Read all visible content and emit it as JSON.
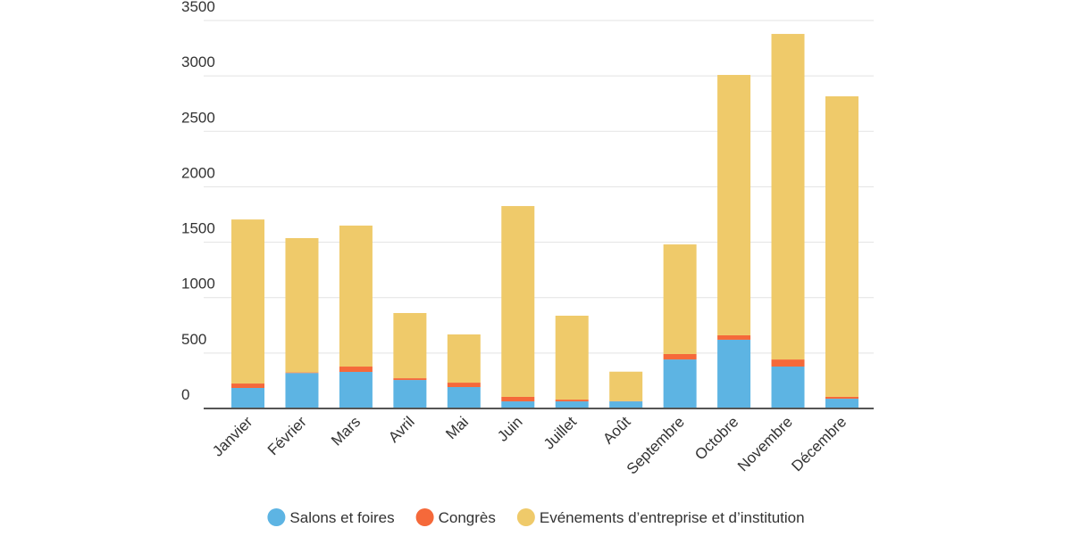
{
  "chart_data": {
    "type": "bar",
    "stacked": true,
    "categories": [
      "Janvier",
      "Février",
      "Mars",
      "Avril",
      "Mai",
      "Juin",
      "Juillet",
      "Août",
      "Septembre",
      "Octobre",
      "Novembre",
      "Décembre"
    ],
    "series": [
      {
        "name": "Salons et foires",
        "color": "#5db4e3",
        "values": [
          185,
          320,
          330,
          257,
          193,
          64,
          64,
          64,
          442,
          620,
          378,
          88
        ]
      },
      {
        "name": "Congrès",
        "color": "#f5693a",
        "values": [
          40,
          5,
          48,
          16,
          40,
          41,
          16,
          2,
          49,
          40,
          64,
          17
        ]
      },
      {
        "name": "Evénements d’entreprise et d’institution",
        "color": "#efca6a",
        "values": [
          1480,
          1212,
          1272,
          588,
          435,
          1721,
          757,
          266,
          989,
          2349,
          2937,
          2711
        ]
      }
    ],
    "ylim": [
      0,
      3500
    ],
    "yticks": [
      0,
      500,
      1000,
      1500,
      2000,
      2500,
      3000,
      3500
    ],
    "grid": true,
    "legend": "bottom"
  }
}
